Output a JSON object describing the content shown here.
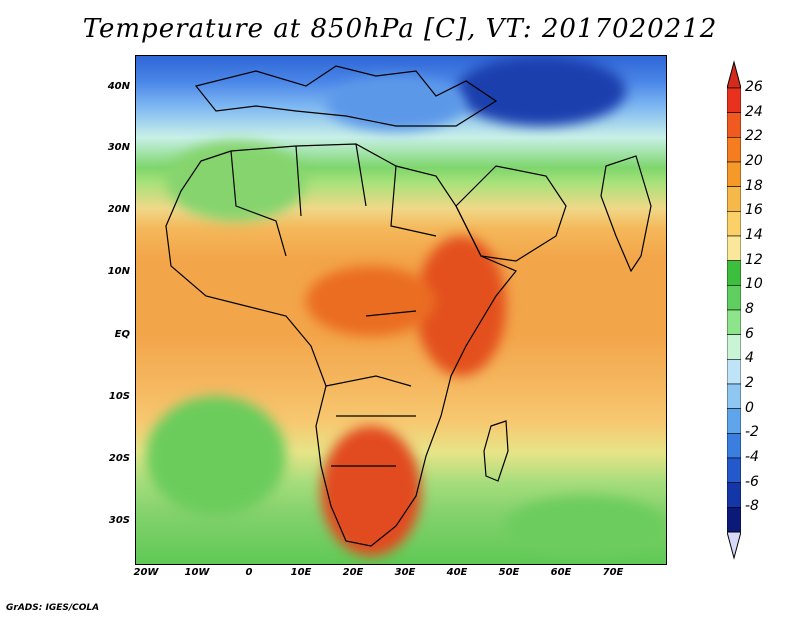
{
  "title": "Temperature at 850hPa [C], VT: 2017020212",
  "y_ticks": [
    "40N",
    "30N",
    "20N",
    "10N",
    "EQ",
    "10S",
    "20S",
    "30S"
  ],
  "x_ticks": [
    "20W",
    "10W",
    "0",
    "10E",
    "20E",
    "30E",
    "40E",
    "50E",
    "60E",
    "70E"
  ],
  "colorbar": {
    "labels": [
      "26",
      "24",
      "22",
      "20",
      "18",
      "16",
      "14",
      "12",
      "10",
      "8",
      "6",
      "4",
      "2",
      "0",
      "-2",
      "-4",
      "-6",
      "-8"
    ],
    "colors": [
      "#e8321e",
      "#f05a1e",
      "#f57c1f",
      "#f59a28",
      "#f7b84a",
      "#fbd068",
      "#fbe79a",
      "#3cbf3c",
      "#5fd05f",
      "#8ee48a",
      "#c9f5d6",
      "#bfe3f7",
      "#8ec8f2",
      "#5fa5ec",
      "#3a7ee0",
      "#2459cc",
      "#1436a8",
      "#0b1a78"
    ],
    "top_color": "#d62a1a",
    "bottom_color": "#d8d8f8"
  },
  "credit": "GrADS: IGES/COLA"
}
